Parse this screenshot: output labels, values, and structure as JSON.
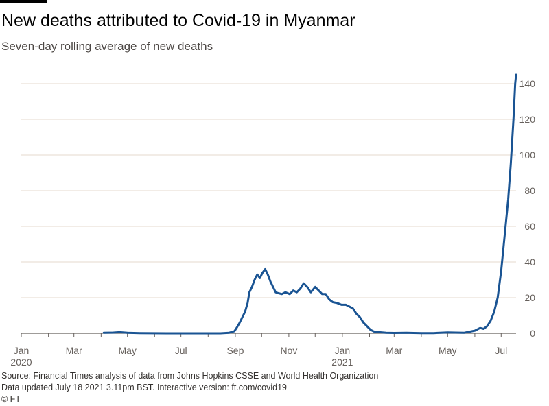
{
  "title": "New deaths attributed to Covid-19 in Myanmar",
  "subtitle": "Seven-day rolling average of new deaths",
  "footer": {
    "source": "Source: Financial Times analysis of data from Johns Hopkins CSSE and World Health Organization",
    "updated": "Data updated July 18 2021 3.11pm BST. Interactive version: ft.com/covid19",
    "copyright": "© FT"
  },
  "colors": {
    "line": "#1a5493",
    "grid": "#e6d9ce",
    "axis": "#66605c",
    "text": "#66605c"
  },
  "chart_data": {
    "type": "line",
    "title": "New deaths attributed to Covid-19 in Myanmar",
    "subtitle": "Seven-day rolling average of new deaths",
    "xlabel": "",
    "ylabel": "",
    "xlim": [
      "2020-01-01",
      "2021-07-18"
    ],
    "ylim": [
      0,
      145
    ],
    "y_ticks": [
      0,
      20,
      40,
      60,
      80,
      100,
      120,
      140
    ],
    "y_axis_side": "right",
    "grid": "horizontal",
    "x_ticks": [
      {
        "date": "2020-01-01",
        "label": "Jan",
        "sublabel": "2020"
      },
      {
        "date": "2020-03-01",
        "label": "Mar",
        "sublabel": ""
      },
      {
        "date": "2020-05-01",
        "label": "May",
        "sublabel": ""
      },
      {
        "date": "2020-07-01",
        "label": "Jul",
        "sublabel": ""
      },
      {
        "date": "2020-09-01",
        "label": "Sep",
        "sublabel": ""
      },
      {
        "date": "2020-11-01",
        "label": "Nov",
        "sublabel": ""
      },
      {
        "date": "2021-01-01",
        "label": "Jan",
        "sublabel": "2021"
      },
      {
        "date": "2021-03-01",
        "label": "Mar",
        "sublabel": ""
      },
      {
        "date": "2021-05-01",
        "label": "May",
        "sublabel": ""
      },
      {
        "date": "2021-07-01",
        "label": "Jul",
        "sublabel": ""
      }
    ],
    "series": [
      {
        "color": "#1a5493",
        "points": [
          [
            "2020-04-04",
            0.3
          ],
          [
            "2020-04-15",
            0.4
          ],
          [
            "2020-04-22",
            0.6
          ],
          [
            "2020-05-01",
            0.3
          ],
          [
            "2020-05-15",
            0.1
          ],
          [
            "2020-06-15",
            0.0
          ],
          [
            "2020-07-15",
            0.0
          ],
          [
            "2020-08-15",
            0.0
          ],
          [
            "2020-08-25",
            0.3
          ],
          [
            "2020-08-31",
            1.2
          ],
          [
            "2020-09-03",
            3.5
          ],
          [
            "2020-09-06",
            6
          ],
          [
            "2020-09-09",
            9
          ],
          [
            "2020-09-12",
            12
          ],
          [
            "2020-09-15",
            17
          ],
          [
            "2020-09-17",
            23
          ],
          [
            "2020-09-20",
            26
          ],
          [
            "2020-09-23",
            30
          ],
          [
            "2020-09-26",
            33
          ],
          [
            "2020-09-29",
            31
          ],
          [
            "2020-10-02",
            34
          ],
          [
            "2020-10-05",
            36
          ],
          [
            "2020-10-08",
            33
          ],
          [
            "2020-10-11",
            29
          ],
          [
            "2020-10-14",
            26
          ],
          [
            "2020-10-17",
            23
          ],
          [
            "2020-10-20",
            22.5
          ],
          [
            "2020-10-24",
            22
          ],
          [
            "2020-10-28",
            23
          ],
          [
            "2020-11-02",
            22
          ],
          [
            "2020-11-06",
            24
          ],
          [
            "2020-11-10",
            23
          ],
          [
            "2020-11-14",
            25
          ],
          [
            "2020-11-18",
            28
          ],
          [
            "2020-11-22",
            26
          ],
          [
            "2020-11-26",
            23
          ],
          [
            "2020-12-01",
            26
          ],
          [
            "2020-12-05",
            24
          ],
          [
            "2020-12-09",
            22
          ],
          [
            "2020-12-13",
            22
          ],
          [
            "2020-12-17",
            19
          ],
          [
            "2020-12-21",
            17.5
          ],
          [
            "2020-12-26",
            17
          ],
          [
            "2020-12-31",
            16
          ],
          [
            "2021-01-05",
            16
          ],
          [
            "2021-01-09",
            15
          ],
          [
            "2021-01-13",
            14
          ],
          [
            "2021-01-17",
            11
          ],
          [
            "2021-01-21",
            9
          ],
          [
            "2021-01-25",
            6
          ],
          [
            "2021-01-29",
            4
          ],
          [
            "2021-02-02",
            2
          ],
          [
            "2021-02-06",
            1
          ],
          [
            "2021-02-12",
            0.6
          ],
          [
            "2021-02-20",
            0.3
          ],
          [
            "2021-03-01",
            0.2
          ],
          [
            "2021-03-15",
            0.3
          ],
          [
            "2021-04-01",
            0.1
          ],
          [
            "2021-04-15",
            0.1
          ],
          [
            "2021-05-01",
            0.5
          ],
          [
            "2021-05-10",
            0.4
          ],
          [
            "2021-05-20",
            0.3
          ],
          [
            "2021-05-25",
            0.8
          ],
          [
            "2021-06-01",
            1.5
          ],
          [
            "2021-06-07",
            3
          ],
          [
            "2021-06-11",
            2.5
          ],
          [
            "2021-06-15",
            4
          ],
          [
            "2021-06-19",
            7
          ],
          [
            "2021-06-23",
            12
          ],
          [
            "2021-06-27",
            20
          ],
          [
            "2021-07-01",
            35
          ],
          [
            "2021-07-05",
            55
          ],
          [
            "2021-07-09",
            75
          ],
          [
            "2021-07-12",
            95
          ],
          [
            "2021-07-15",
            120
          ],
          [
            "2021-07-17",
            140
          ],
          [
            "2021-07-18",
            145
          ]
        ]
      }
    ]
  }
}
